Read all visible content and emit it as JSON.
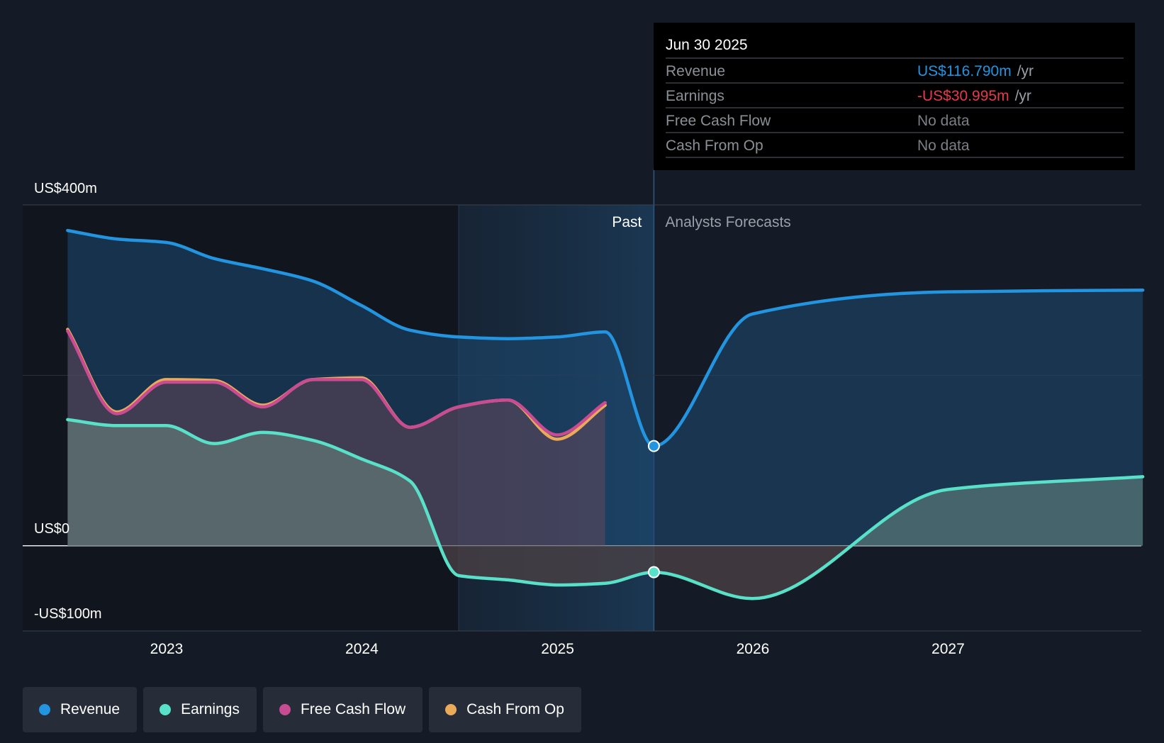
{
  "chart_data": {
    "type": "area",
    "y_axis": {
      "unit": "US$m",
      "ylim": [
        -100,
        400
      ],
      "labels": [
        "US$400m",
        "US$0",
        "-US$100m"
      ]
    },
    "x_axis": {
      "ticks": [
        "2023",
        "2024",
        "2025",
        "2026",
        "2027"
      ]
    },
    "regions": {
      "past_label": "Past",
      "forecast_label": "Analysts Forecasts",
      "past_highlight_start": "2024-06-30",
      "divider": "2025-06-30"
    },
    "series": [
      {
        "name": "Revenue",
        "color": "#2394df",
        "x": [
          "2022-06-30",
          "2022-09-30",
          "2022-12-31",
          "2023-03-31",
          "2023-06-30",
          "2023-09-30",
          "2023-12-31",
          "2024-03-31",
          "2024-06-30",
          "2024-09-30",
          "2024-12-31",
          "2025-03-31",
          "2025-06-30",
          "2025-12-31",
          "2026-12-31",
          "2027-12-31"
        ],
        "values": [
          370,
          360,
          356,
          337,
          325,
          311,
          282,
          253,
          245,
          243,
          245,
          251,
          117,
          272,
          298,
          300
        ]
      },
      {
        "name": "Earnings",
        "color": "#58e1c8",
        "x": [
          "2022-06-30",
          "2022-09-30",
          "2022-12-31",
          "2023-03-31",
          "2023-06-30",
          "2023-09-30",
          "2023-12-31",
          "2024-03-31",
          "2024-06-30",
          "2024-09-30",
          "2024-12-31",
          "2025-03-31",
          "2025-06-30",
          "2025-12-31",
          "2026-12-31",
          "2027-12-31"
        ],
        "values": [
          148,
          141,
          141,
          120,
          133,
          124,
          102,
          76,
          -35,
          -40,
          -46,
          -44,
          -31,
          -62,
          66,
          81
        ]
      },
      {
        "name": "Free Cash Flow",
        "color": "#c94b92",
        "x": [
          "2022-06-30",
          "2022-09-30",
          "2022-12-31",
          "2023-03-31",
          "2023-06-30",
          "2023-09-30",
          "2023-12-31",
          "2024-03-31",
          "2024-06-30",
          "2024-09-30",
          "2024-12-31",
          "2025-03-31"
        ],
        "values": [
          252,
          155,
          192,
          192,
          163,
          195,
          195,
          139,
          163,
          171,
          130,
          168
        ]
      },
      {
        "name": "Cash From Op",
        "color": "#e9ab5a",
        "x": [
          "2022-06-30",
          "2022-09-30",
          "2022-12-31",
          "2023-03-31",
          "2023-06-30",
          "2023-09-30",
          "2023-12-31",
          "2024-03-31",
          "2024-06-30",
          "2024-09-30",
          "2024-12-31",
          "2025-03-31"
        ],
        "values": [
          254,
          157,
          195,
          194,
          165,
          195,
          197,
          139,
          163,
          171,
          125,
          165
        ]
      }
    ]
  },
  "tooltip": {
    "date": "Jun 30 2025",
    "rows": [
      {
        "label": "Revenue",
        "value": "US$116.790m",
        "suffix": "/yr",
        "color": "#2394df"
      },
      {
        "label": "Earnings",
        "value": "-US$30.995m",
        "suffix": "/yr",
        "color": "#e8384f"
      },
      {
        "label": "Free Cash Flow",
        "value": "No data",
        "suffix": "",
        "color": "#7c7f86"
      },
      {
        "label": "Cash From Op",
        "value": "No data",
        "suffix": "",
        "color": "#7c7f86"
      }
    ]
  },
  "legend": [
    {
      "label": "Revenue",
      "color": "#2394df"
    },
    {
      "label": "Earnings",
      "color": "#58e1c8"
    },
    {
      "label": "Free Cash Flow",
      "color": "#c94b92"
    },
    {
      "label": "Cash From Op",
      "color": "#e9ab5a"
    }
  ]
}
